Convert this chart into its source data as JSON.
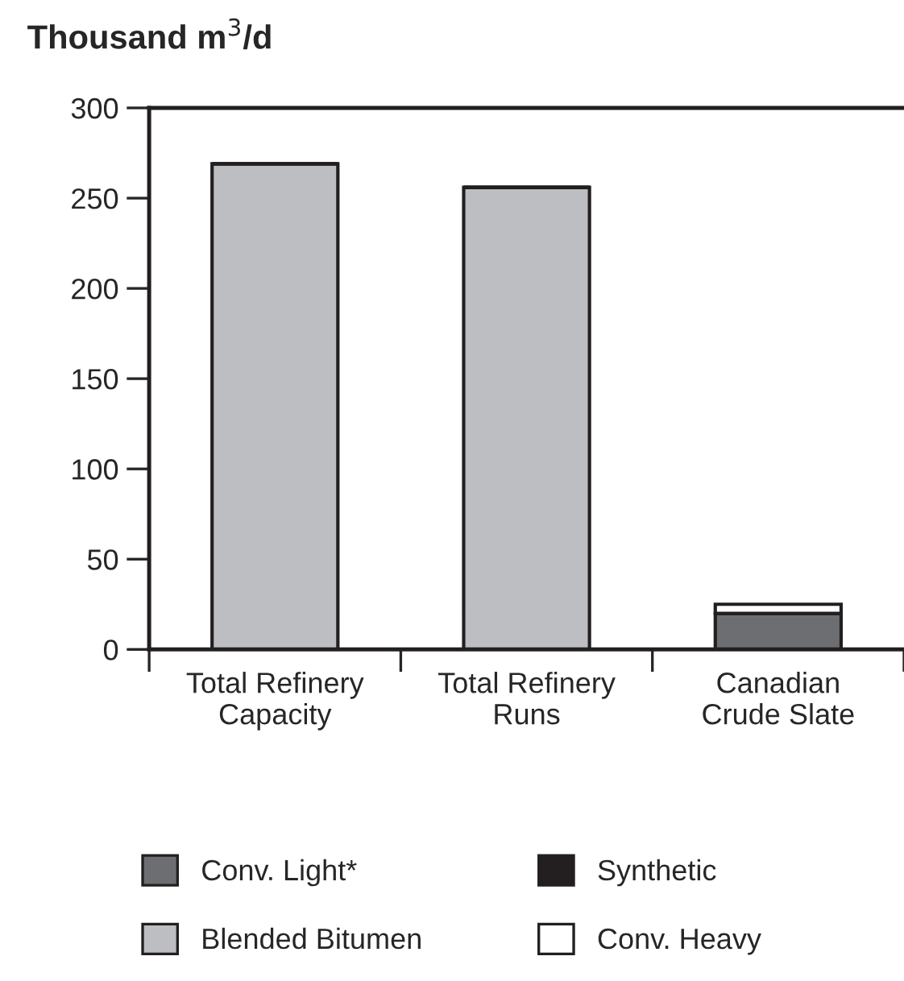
{
  "chart_data": {
    "type": "bar",
    "title": "Thousand m$^{3}$/d",
    "stacked": true,
    "categories": [
      "Total Refinery\nCapacity",
      "Total Refinery\nRuns",
      "Canadian\nCrude Slate"
    ],
    "series": [
      {
        "name": "Conv. Light*",
        "color": "#6d6e71",
        "values": [
          0,
          0,
          20
        ]
      },
      {
        "name": "Blended Bitumen",
        "color": "#bdbec2",
        "values": [
          269,
          256,
          0
        ]
      },
      {
        "name": "Synthetic",
        "color": "#231f20",
        "values": [
          0,
          0,
          0
        ]
      },
      {
        "name": "Conv. Heavy",
        "color": "#ffffff",
        "values": [
          0,
          0,
          5
        ]
      }
    ],
    "ylim": [
      0,
      300
    ],
    "yticks": [
      0,
      50,
      100,
      150,
      200,
      250,
      300
    ],
    "grid": false,
    "legend": "bottom"
  }
}
